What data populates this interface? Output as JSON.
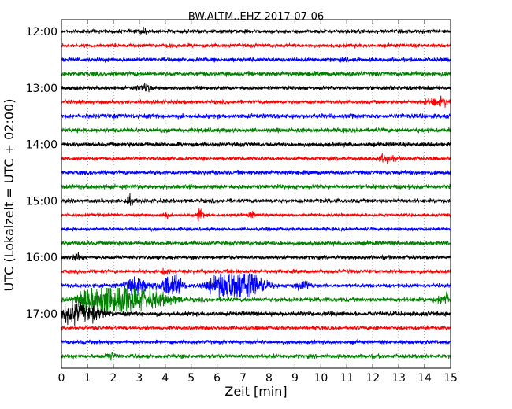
{
  "chart_data": {
    "type": "line",
    "title": "BW.ALTM..EHZ 2017-07-06",
    "xlabel": "Zeit  [min]",
    "ylabel": "UTC (Lokalzeit = UTC + 02:00)",
    "xlim": [
      0,
      15
    ],
    "x_ticks": [
      "0",
      "1",
      "2",
      "3",
      "4",
      "5",
      "6",
      "7",
      "8",
      "9",
      "10",
      "11",
      "12",
      "13",
      "14",
      "15"
    ],
    "y_ticks": [
      {
        "label": "12:00",
        "trace": 0
      },
      {
        "label": "13:00",
        "trace": 4
      },
      {
        "label": "14:00",
        "trace": 8
      },
      {
        "label": "15:00",
        "trace": 12
      },
      {
        "label": "16:00",
        "trace": 16
      },
      {
        "label": "17:00",
        "trace": 20
      }
    ],
    "grid": {
      "vertical_dotted": true
    },
    "colors": [
      "#000000",
      "#ff0000",
      "#0000ff",
      "#008000"
    ],
    "series": [
      {
        "start": "12:00",
        "color": "#000000",
        "noise": 2.0,
        "events": [
          [
            3.2,
            3.0,
            0.1
          ]
        ]
      },
      {
        "start": "12:15",
        "color": "#ff0000",
        "noise": 2.0,
        "events": []
      },
      {
        "start": "12:30",
        "color": "#0000ff",
        "noise": 2.2,
        "events": []
      },
      {
        "start": "12:45",
        "color": "#008000",
        "noise": 2.4,
        "events": []
      },
      {
        "start": "13:00",
        "color": "#000000",
        "noise": 2.2,
        "events": [
          [
            3.2,
            4.0,
            0.15
          ]
        ]
      },
      {
        "start": "13:15",
        "color": "#ff0000",
        "noise": 2.0,
        "events": [
          [
            14.6,
            4.0,
            0.35
          ]
        ]
      },
      {
        "start": "13:30",
        "color": "#0000ff",
        "noise": 2.4,
        "events": []
      },
      {
        "start": "13:45",
        "color": "#008000",
        "noise": 2.4,
        "events": []
      },
      {
        "start": "14:00",
        "color": "#000000",
        "noise": 2.2,
        "events": []
      },
      {
        "start": "14:15",
        "color": "#ff0000",
        "noise": 2.0,
        "events": [
          [
            12.5,
            4.0,
            0.2
          ]
        ]
      },
      {
        "start": "14:30",
        "color": "#0000ff",
        "noise": 2.2,
        "events": []
      },
      {
        "start": "14:45",
        "color": "#008000",
        "noise": 2.4,
        "events": []
      },
      {
        "start": "15:00",
        "color": "#000000",
        "noise": 2.2,
        "events": [
          [
            2.6,
            4.0,
            0.1
          ]
        ]
      },
      {
        "start": "15:15",
        "color": "#ff0000",
        "noise": 1.6,
        "events": [
          [
            5.35,
            10.0,
            0.06
          ],
          [
            4.0,
            3.0,
            0.08
          ],
          [
            7.3,
            3.0,
            0.08
          ]
        ]
      },
      {
        "start": "15:30",
        "color": "#0000ff",
        "noise": 1.8,
        "events": []
      },
      {
        "start": "15:45",
        "color": "#008000",
        "noise": 2.2,
        "events": []
      },
      {
        "start": "16:00",
        "color": "#000000",
        "noise": 2.0,
        "events": [
          [
            0.6,
            4.0,
            0.1
          ]
        ]
      },
      {
        "start": "16:15",
        "color": "#ff0000",
        "noise": 2.0,
        "events": [
          [
            4.0,
            3.0,
            0.1
          ]
        ]
      },
      {
        "start": "16:30",
        "color": "#0000ff",
        "noise": 2.0,
        "events": [
          [
            2.9,
            10.0,
            0.3
          ],
          [
            4.2,
            11.0,
            0.3
          ],
          [
            6.2,
            14.0,
            0.35
          ],
          [
            7.1,
            17.0,
            0.45
          ],
          [
            9.3,
            4.0,
            0.2
          ]
        ]
      },
      {
        "start": "16:45",
        "color": "#008000",
        "noise": 2.4,
        "events": [
          [
            1.0,
            9.0,
            0.35
          ],
          [
            1.75,
            14.0,
            0.45
          ],
          [
            2.5,
            9.0,
            0.5
          ],
          [
            3.6,
            6.0,
            0.6
          ],
          [
            14.8,
            6.0,
            0.2
          ]
        ]
      },
      {
        "start": "17:00",
        "color": "#000000",
        "noise": 2.4,
        "events": [
          [
            0.4,
            9.0,
            0.35
          ],
          [
            1.2,
            5.0,
            0.4
          ]
        ]
      },
      {
        "start": "17:15",
        "color": "#ff0000",
        "noise": 2.0,
        "events": []
      },
      {
        "start": "17:30",
        "color": "#0000ff",
        "noise": 2.0,
        "events": []
      },
      {
        "start": "17:45",
        "color": "#008000",
        "noise": 2.2,
        "events": [
          [
            1.9,
            4.0,
            0.1
          ]
        ]
      }
    ]
  }
}
